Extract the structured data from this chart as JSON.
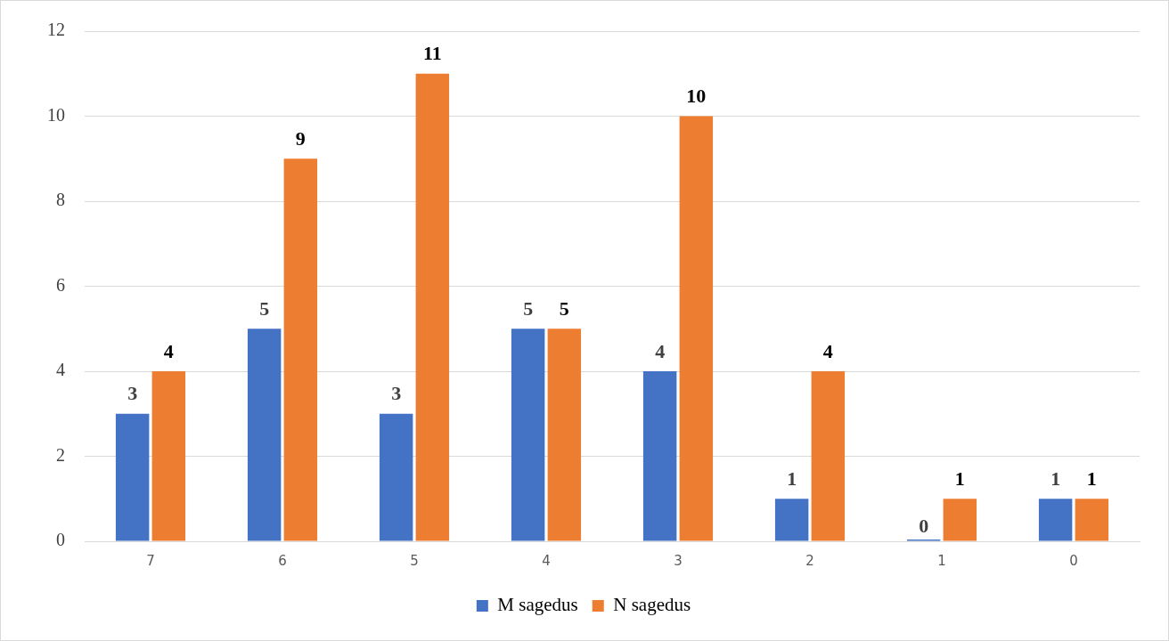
{
  "chart_data": {
    "type": "bar",
    "categories": [
      "7",
      "6",
      "5",
      "4",
      "3",
      "2",
      "1",
      "0"
    ],
    "series": [
      {
        "name": "M sagedus",
        "color": "#4472c4",
        "values": [
          3,
          5,
          3,
          5,
          4,
          1,
          0,
          1
        ]
      },
      {
        "name": "N sagedus",
        "color": "#ed7d31",
        "values": [
          4,
          9,
          11,
          5,
          10,
          4,
          1,
          1
        ]
      }
    ],
    "ylim": [
      0,
      12
    ],
    "yticks": [
      0,
      2,
      4,
      6,
      8,
      10,
      12
    ],
    "grid": "y",
    "legend": "bottom",
    "data_labels": true
  }
}
